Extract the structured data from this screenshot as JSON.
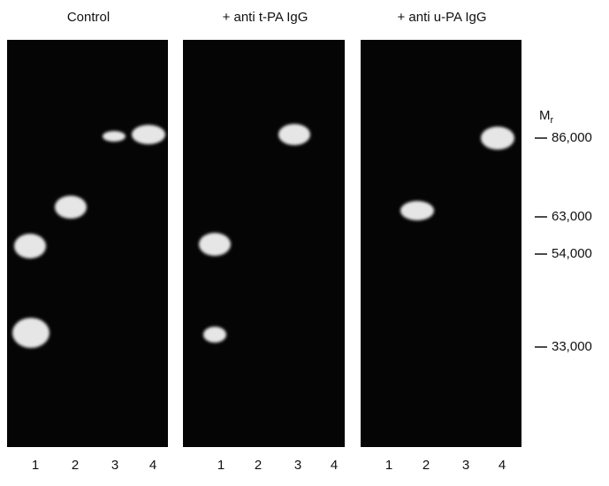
{
  "panels": [
    {
      "title": "Control",
      "lanes": [
        "1",
        "2",
        "3",
        "4"
      ]
    },
    {
      "title": "+ anti t-PA IgG",
      "lanes": [
        "1",
        "2",
        "3",
        "4"
      ]
    },
    {
      "title": "+ anti u-PA IgG",
      "lanes": [
        "1",
        "2",
        "3",
        "4"
      ]
    }
  ],
  "markers": {
    "heading": {
      "main": "M",
      "sub": "r"
    },
    "labels": [
      "86,000",
      "63,000",
      "54,000",
      "33,000"
    ]
  }
}
